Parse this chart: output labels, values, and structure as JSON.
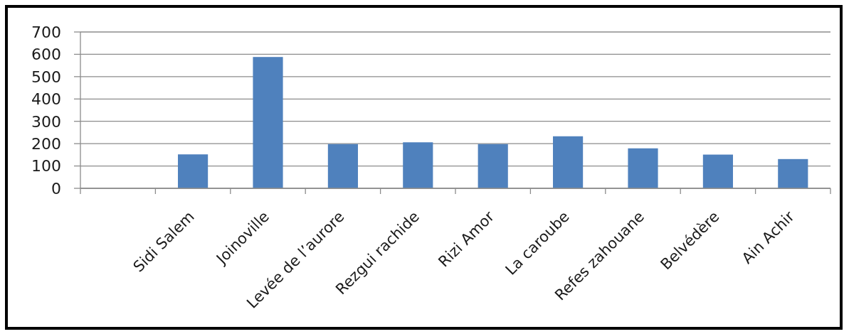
{
  "chart_data": {
    "type": "bar",
    "categories": [
      null,
      "Sidi Salem",
      "Joinoville",
      "Levée de l’aurore",
      "Rezgui rachide",
      "Rizi Amor",
      "La caroube",
      "Refes zahouane",
      "Belvédère",
      "Ain Achir"
    ],
    "values": [
      null,
      152,
      588,
      198,
      206,
      198,
      233,
      179,
      151,
      131
    ],
    "color": "#4f81bd",
    "ylim": [
      0,
      700
    ],
    "yticks": [
      0,
      100,
      200,
      300,
      400,
      500,
      600,
      700
    ],
    "grid": "y"
  }
}
